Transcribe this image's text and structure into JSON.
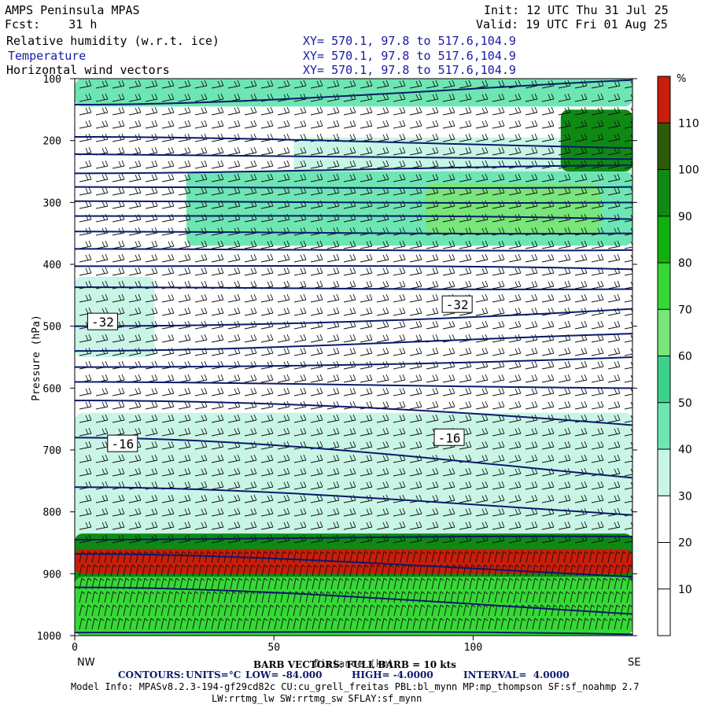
{
  "header": {
    "model": "AMPS Peninsula MPAS",
    "forecast": "Fcst:    31 h",
    "init": "Init: 12 UTC Thu 31 Jul 25",
    "valid": "Valid: 19 UTC Fri 01 Aug 25",
    "field1": "Relative humidity (w.r.t. ice)",
    "field2": "Temperature",
    "field3": "Horizontal wind vectors",
    "xy1": "XY= 570.1, 97.8 to 517.6,104.9",
    "xy2": "XY= 570.1, 97.8 to 517.6,104.9",
    "xy3": "XY= 570.1, 97.8 to 517.6,104.9"
  },
  "footer": {
    "barb": "BARB VECTORS: FULL BARB = 10 kts",
    "contours_label": "CONTOURS:",
    "contours_units": "UNITS=°C",
    "contours_low": "LOW= -84.000",
    "contours_high": "HIGH= -4.0000",
    "contours_interval": "INTERVAL=  4.0000",
    "model_info": "Model Info: MPASv8.2.3-194-gf29cd82c CU:cu_grell_freitas PBL:bl_mynn MP:mp_thompson SF:sf_noahmp 2.7",
    "model_info2": "LW:rrtmg_lw SW:rrtmg_sw SFLAY:sf_mynn"
  },
  "colors": {
    "contour": "#0b1a6b",
    "background": "#ffffff"
  },
  "chart_data": {
    "type": "heatmap",
    "xlabel": "Distance (km)",
    "ylabel": "Pressure (hPa)",
    "x_range": [
      0,
      140
    ],
    "y_range": [
      100,
      1000
    ],
    "x_ticks": [
      0,
      50,
      100
    ],
    "y_ticks": [
      100,
      200,
      300,
      400,
      500,
      600,
      700,
      800,
      900,
      1000
    ],
    "x_tick_labels": [
      "0",
      "50",
      "100"
    ],
    "y_tick_labels": [
      "100",
      "200",
      "300",
      "400",
      "500",
      "600",
      "700",
      "800",
      "900",
      "1000"
    ],
    "left_end_label": "NW",
    "right_end_label": "SE",
    "colorbar": {
      "unit_label": "%",
      "boundaries": [
        0,
        10,
        20,
        30,
        40,
        50,
        60,
        70,
        80,
        90,
        100,
        110,
        120
      ],
      "tick_labels": [
        "10",
        "20",
        "30",
        "40",
        "50",
        "60",
        "70",
        "80",
        "90",
        "100",
        "110"
      ],
      "colors": [
        "#ffffff",
        "#ffffff",
        "#ffffff",
        "#c8f5e6",
        "#6ee6b4",
        "#3cd28c",
        "#78e678",
        "#36d836",
        "#10b010",
        "#0e8a14",
        "#2e5a0a",
        "#c81e0a"
      ]
    },
    "temperature_contour_labels": [
      {
        "value": "-32",
        "x": 7,
        "p": 493
      },
      {
        "value": "-32",
        "x": 96,
        "p": 465
      },
      {
        "value": "-16",
        "x": 12,
        "p": 690
      },
      {
        "value": "-16",
        "x": 94,
        "p": 680
      }
    ],
    "isotherm_pressures_left": [
      142,
      194,
      222,
      253,
      275,
      298,
      322,
      347,
      375,
      403,
      437,
      500,
      540,
      566,
      590,
      620,
      680,
      760,
      845,
      868,
      922,
      995
    ],
    "isotherm_pressures_right": [
      102,
      212,
      230,
      240,
      275,
      300,
      327,
      350,
      377,
      408,
      440,
      472,
      512,
      550,
      600,
      660,
      745,
      805,
      840,
      905,
      965,
      998
    ],
    "rh_regions": [
      {
        "p_top": 100,
        "p_bottom": 145,
        "x_start": 0,
        "x_end": 140,
        "rh": 40
      },
      {
        "p_top": 195,
        "p_bottom": 290,
        "x_start": 55,
        "x_end": 140,
        "rh": 35
      },
      {
        "p_top": 250,
        "p_bottom": 370,
        "x_start": 28,
        "x_end": 140,
        "rh": 45
      },
      {
        "p_top": 270,
        "p_bottom": 350,
        "x_start": 88,
        "x_end": 132,
        "rh": 60
      },
      {
        "p_top": 150,
        "p_bottom": 250,
        "x_start": 122,
        "x_end": 140,
        "rh": 90
      },
      {
        "p_top": 420,
        "p_bottom": 550,
        "x_start": 0,
        "x_end": 20,
        "rh": 35
      },
      {
        "p_top": 640,
        "p_bottom": 860,
        "x_start": 0,
        "x_end": 140,
        "rh": 32
      },
      {
        "p_top": 835,
        "p_bottom": 1000,
        "x_start": 0,
        "x_end": 140,
        "rh": 95
      },
      {
        "p_top": 860,
        "p_bottom": 900,
        "x_start": 0,
        "x_end": 140,
        "rh": 115
      },
      {
        "p_top": 905,
        "p_bottom": 1000,
        "x_start": 0,
        "x_end": 140,
        "rh": 75
      }
    ]
  }
}
